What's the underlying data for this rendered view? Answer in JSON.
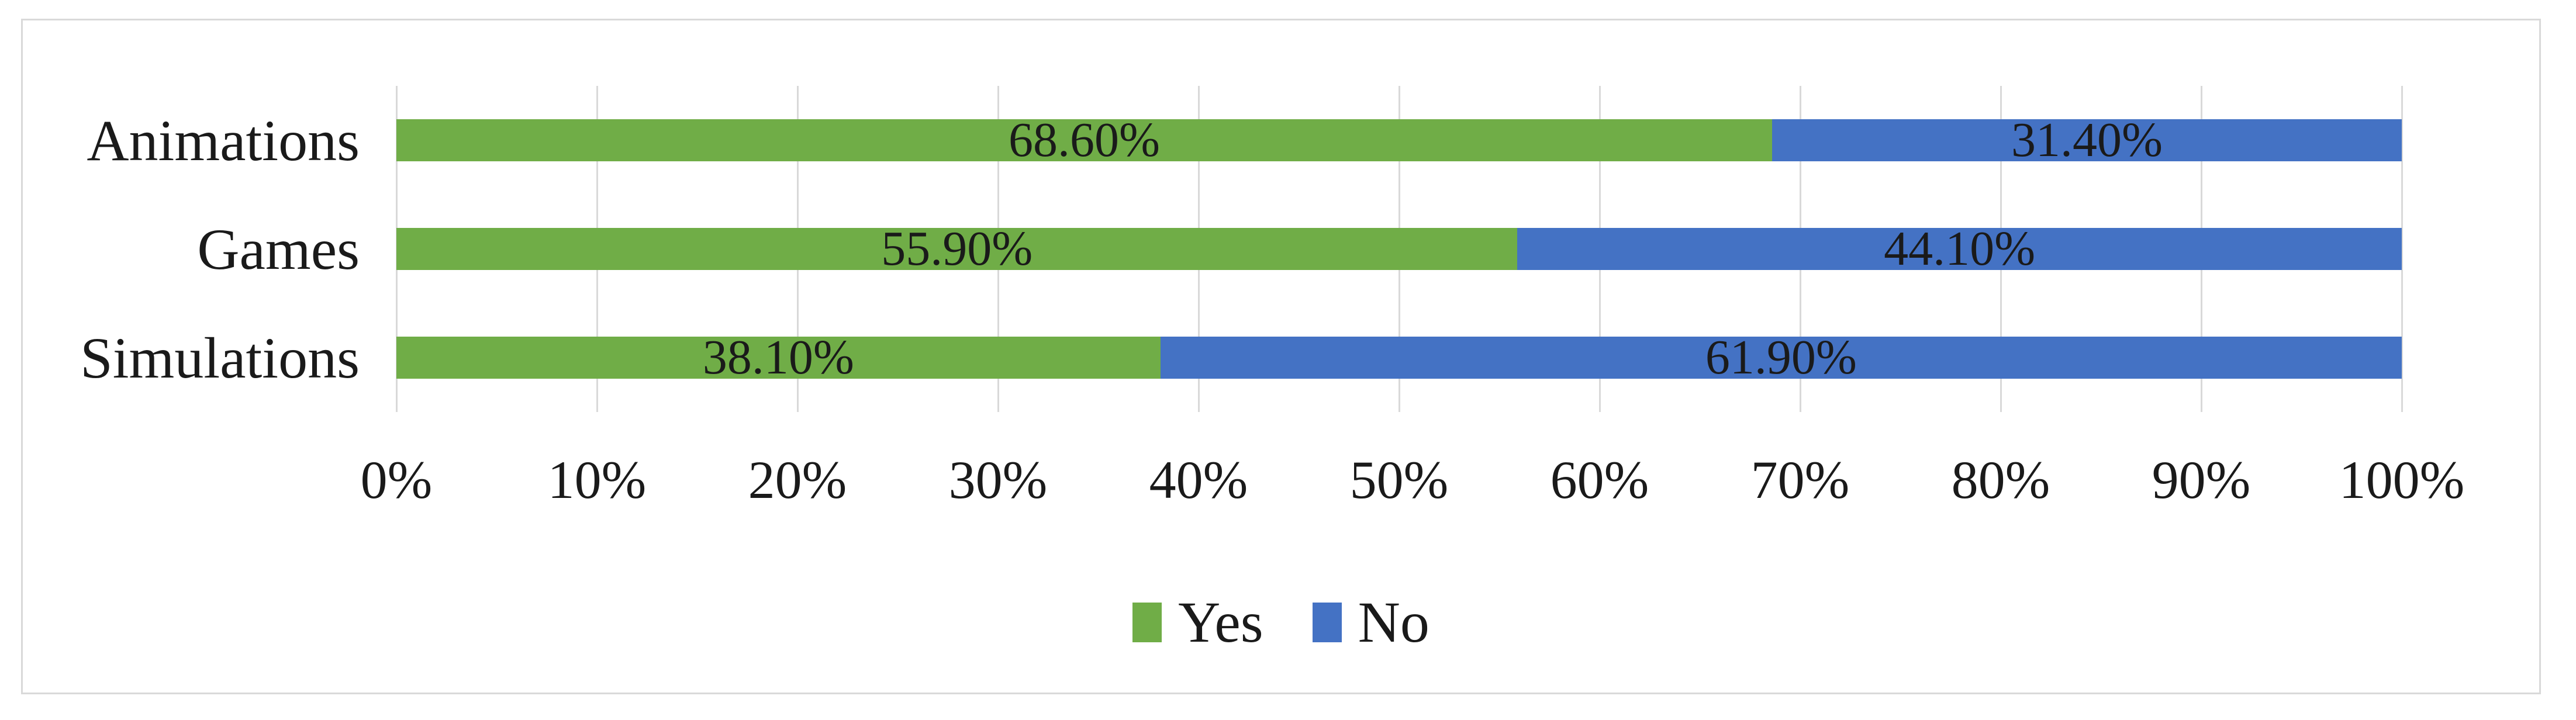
{
  "chart_data": {
    "type": "bar",
    "orientation": "horizontal",
    "stacked": true,
    "title": "",
    "unit": "%",
    "categories": [
      "Animations",
      "Games",
      "Simulations"
    ],
    "series": [
      {
        "name": "Yes",
        "color": "#70AD47",
        "values": [
          68.6,
          55.9,
          38.1
        ],
        "data_labels": [
          "68.60%",
          "55.90%",
          "38.10%"
        ]
      },
      {
        "name": "No",
        "color": "#4472C4",
        "values": [
          31.4,
          44.1,
          61.9
        ],
        "data_labels": [
          "31.40%",
          "44.10%",
          "61.90%"
        ]
      }
    ],
    "x_axis": {
      "ticks": [
        "0%",
        "10%",
        "20%",
        "30%",
        "40%",
        "50%",
        "60%",
        "70%",
        "80%",
        "90%",
        "100%"
      ],
      "range": [
        0,
        100
      ],
      "gridlines": true,
      "gridline_color": "#D9D9D9"
    },
    "legend": {
      "position": "bottom",
      "items": [
        {
          "label": "Yes",
          "color": "#70AD47"
        },
        {
          "label": "No",
          "color": "#4472C4"
        }
      ]
    },
    "data_label_color": "#1a1a1a"
  }
}
